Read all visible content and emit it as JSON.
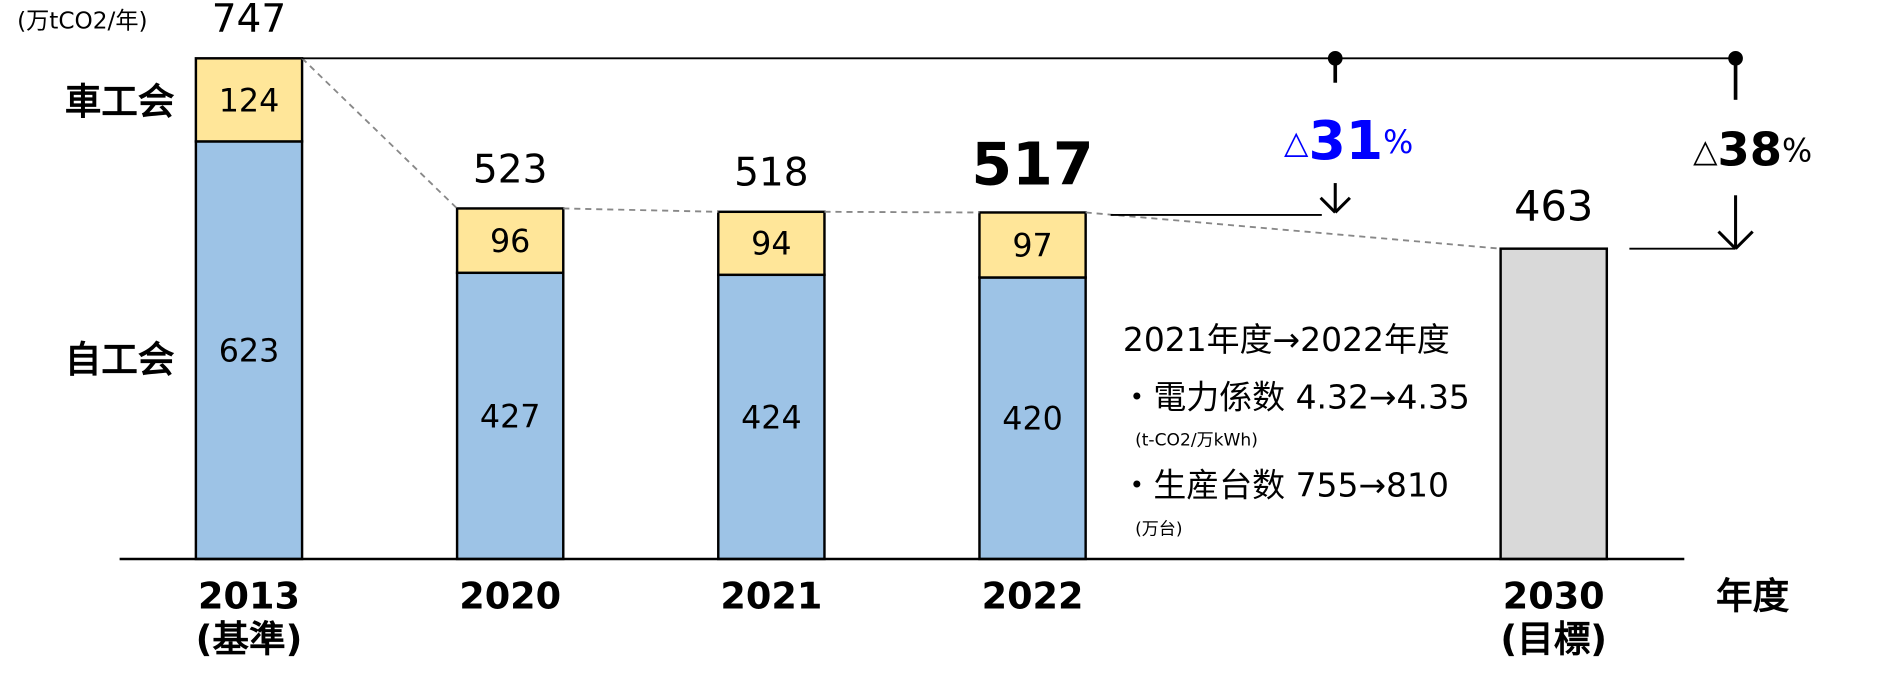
{
  "chart_data": {
    "type": "stacked-bar",
    "unit_label": "(万tCO2/年)",
    "x_label": "年度",
    "categories": [
      "2013",
      "2020",
      "2021",
      "2022",
      "2030"
    ],
    "category_notes": [
      "(基準)",
      null,
      null,
      null,
      "(目標)"
    ],
    "series": [
      {
        "name": "自工会",
        "color": "#9dc3e6",
        "values": [
          623,
          427,
          424,
          420,
          null
        ]
      },
      {
        "name": "車工会",
        "color": "#ffe699",
        "values": [
          124,
          96,
          94,
          97,
          null
        ]
      },
      {
        "color": "#d9d9d9",
        "values": [
          null,
          null,
          null,
          null,
          463
        ]
      }
    ],
    "totals": [
      747,
      523,
      518,
      517,
      null
    ],
    "ylim": [
      0,
      834
    ],
    "reduction_2022": {
      "symbol": "△",
      "number": 31,
      "unit": "%"
    },
    "reduction_2030": {
      "symbol": "△",
      "number": 38,
      "unit": "%"
    },
    "notes": [
      "2021年度→2022年度",
      "・電力係数  4.32→4.35",
      "(t-CO2/万kWh)",
      "・生産台数  755→810",
      "(万台)"
    ]
  }
}
